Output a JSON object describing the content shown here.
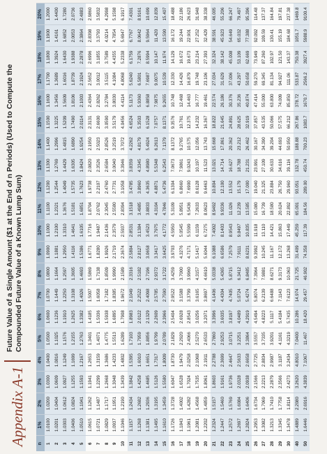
{
  "header": {
    "title": "Appendix A-1",
    "subtitle": "Future Value of a Single Amount ($1 at the End of n Periods) (Used to Compute the Compounded Future Value of a Known Lump Sum)"
  },
  "table": {
    "columns": [
      "n",
      "1%",
      "2%",
      "3%",
      "4%",
      "5%",
      "6%",
      "7%",
      "8%",
      "9%",
      "10%",
      "11%",
      "12%",
      "13%",
      "14%",
      "15%",
      "16%",
      "17%",
      "18%",
      "19%",
      "20%"
    ],
    "rows": [
      [
        "1",
        "1.0100",
        "1.0200",
        "1.0300",
        "1.0400",
        "1.0500",
        "1.0600",
        "1.0700",
        "1.0800",
        "1.0900",
        "1.1000",
        "1.1100",
        "1.1200",
        "1.1300",
        "1.1400",
        "1.1500",
        "1.1600",
        "1.1700",
        "1.1800",
        "1.1900",
        "1.2000"
      ],
      [
        "2",
        "1.0201",
        "1.0404",
        "1.0609",
        "1.0816",
        "1.1025",
        "1.1236",
        "1.1449",
        "1.1664",
        "1.1881",
        "1.2100",
        "1.2321",
        "1.2544",
        "1.2769",
        "1.2996",
        "1.3225",
        "1.3456",
        "1.3689",
        "1.3924",
        "1.4161",
        "1.4400"
      ],
      [
        "3",
        "1.0303",
        "1.0612",
        "1.0927",
        "1.1249",
        "1.1576",
        "1.1910",
        "1.2250",
        "1.2597",
        "1.2950",
        "1.3310",
        "1.3676",
        "1.4049",
        "1.4429",
        "1.4815",
        "1.5209",
        "1.5609",
        "1.6016",
        "1.6430",
        "1.6852",
        "1.7280"
      ],
      [
        "4",
        "1.0406",
        "1.0824",
        "1.1255",
        "1.1699",
        "1.2155",
        "1.2625",
        "1.3108",
        "1.3605",
        "1.4116",
        "1.4641",
        "1.5181",
        "1.5735",
        "1.6305",
        "1.6890",
        "1.7490",
        "1.8106",
        "1.8739",
        "1.9388",
        "2.0053",
        "2.0736"
      ],
      [
        "5",
        "1.0510",
        "1.1041",
        "1.1593",
        "1.2167",
        "1.2763",
        "1.3382",
        "1.4026",
        "1.4693",
        "1.5386",
        "1.6105",
        "1.6851",
        "1.7623",
        "1.8424",
        "1.9254",
        "2.0114",
        "2.1003",
        "2.1924",
        "2.2878",
        "2.3864",
        "2.4883"
      ],
      [
        "6",
        "1.0615",
        "1.1262",
        "1.1941",
        "1.2653",
        "1.3401",
        "1.4185",
        "1.5007",
        "1.5869",
        "1.6771",
        "1.7716",
        "1.8704",
        "1.9738",
        "2.0820",
        "2.1950",
        "2.3131",
        "2.4364",
        "2.5652",
        "2.6996",
        "2.8398",
        "2.9860"
      ],
      [
        "7",
        "1.0721",
        "1.1487",
        "1.2299",
        "1.3159",
        "1.4071",
        "1.5036",
        "1.6058",
        "1.7138",
        "1.8280",
        "1.9487",
        "2.0762",
        "2.2107",
        "2.3526",
        "2.5023",
        "2.6600",
        "2.8262",
        "3.0012",
        "3.1855",
        "3.3793",
        "3.5832"
      ],
      [
        "8",
        "1.0829",
        "1.1717",
        "1.2668",
        "1.3686",
        "1.4775",
        "1.5938",
        "1.7182",
        "1.8509",
        "1.9926",
        "2.1436",
        "2.3045",
        "2.4760",
        "2.6584",
        "2.8526",
        "3.0590",
        "3.2784",
        "3.5115",
        "3.7589",
        "4.0214",
        "4.2998"
      ],
      [
        "9",
        "1.0937",
        "1.1951",
        "1.3048",
        "1.4233",
        "1.5513",
        "1.6895",
        "1.8385",
        "1.9990",
        "2.1719",
        "2.3579",
        "2.5580",
        "2.7731",
        "3.0040",
        "3.2519",
        "3.5179",
        "3.8030",
        "4.1084",
        "4.4355",
        "4.7854",
        "5.1598"
      ],
      [
        "10",
        "1.1046",
        "1.2190",
        "1.3439",
        "1.4802",
        "1.6289",
        "1.7908",
        "1.9672",
        "2.1589",
        "2.3674",
        "2.5937",
        "2.8394",
        "3.1058",
        "3.3946",
        "3.7072",
        "4.0456",
        "4.4114",
        "4.8068",
        "5.2338",
        "5.6947",
        "6.1917"
      ],
      [
        "11",
        "1.1157",
        "1.2434",
        "1.3842",
        "1.5395",
        "1.7103",
        "1.8983",
        "2.1049",
        "2.3316",
        "2.5804",
        "2.8531",
        "3.1518",
        "3.4785",
        "3.8359",
        "4.2262",
        "4.6524",
        "5.1173",
        "5.6240",
        "6.1759",
        "6.7767",
        "7.4301"
      ],
      [
        "12",
        "1.1268",
        "1.2682",
        "1.4258",
        "1.6010",
        "1.7959",
        "2.0122",
        "2.2522",
        "2.5182",
        "2.8127",
        "3.1384",
        "3.4985",
        "3.8960",
        "4.3345",
        "4.8179",
        "5.3503",
        "5.9360",
        "6.5801",
        "7.2876",
        "8.0642",
        "8.9161"
      ],
      [
        "13",
        "1.1381",
        "1.2936",
        "1.4685",
        "1.6651",
        "1.8856",
        "2.1329",
        "2.4098",
        "2.7196",
        "3.0658",
        "3.4523",
        "3.8833",
        "4.3635",
        "4.8980",
        "5.4924",
        "6.1528",
        "6.8858",
        "7.6987",
        "8.5994",
        "9.5964",
        "10.699"
      ],
      [
        "14",
        "1.1495",
        "1.3195",
        "1.5126",
        "1.7317",
        "1.9799",
        "2.2609",
        "2.5785",
        "2.9372",
        "3.3417",
        "3.7975",
        "4.3104",
        "4.8871",
        "5.5348",
        "6.2613",
        "7.0757",
        "7.9875",
        "9.0075",
        "10.147",
        "11.420",
        "12.839"
      ],
      [
        "15",
        "1.1610",
        "1.3459",
        "1.5580",
        "1.8009",
        "2.0789",
        "2.3966",
        "2.7590",
        "3.1722",
        "3.6425",
        "4.1772",
        "4.7846",
        "5.4736",
        "6.2543",
        "7.1379",
        "8.1371",
        "9.2655",
        "10.539",
        "11.974",
        "13.590",
        "15.407"
      ],
      [
        "16",
        "1.1726",
        "1.3728",
        "1.6047",
        "1.8730",
        "2.1829",
        "2.5404",
        "2.9522",
        "3.4259",
        "3.9703",
        "4.5950",
        "5.3109",
        "6.1304",
        "7.0673",
        "8.1372",
        "9.3576",
        "10.748",
        "12.330",
        "14.129",
        "16.172",
        "18.488"
      ],
      [
        "17",
        "1.1843",
        "1.4002",
        "1.6528",
        "1.9479",
        "2.2920",
        "2.6928",
        "3.1588",
        "3.7000",
        "4.3276",
        "5.0545",
        "5.8951",
        "6.8660",
        "7.9861",
        "9.2765",
        "10.761",
        "12.468",
        "14.426",
        "16.672",
        "19.244",
        "22.186"
      ],
      [
        "18",
        "1.1961",
        "1.4282",
        "1.7024",
        "2.0258",
        "2.4066",
        "2.8543",
        "3.3799",
        "3.9960",
        "4.7171",
        "5.5599",
        "6.5436",
        "7.6900",
        "9.0243",
        "10.575",
        "12.375",
        "14.463",
        "16.879",
        "19.673",
        "22.901",
        "26.623"
      ],
      [
        "19",
        "1.2081",
        "1.4568",
        "1.7535",
        "2.1068",
        "2.5270",
        "3.0256",
        "3.6165",
        "4.3157",
        "5.1417",
        "6.1159",
        "7.2633",
        "8.6128",
        "10.197",
        "12.056",
        "14.232",
        "16.777",
        "19.748",
        "23.214",
        "27.252",
        "31.948"
      ],
      [
        "20",
        "1.2202",
        "1.4859",
        "1.8061",
        "2.1911",
        "2.6533",
        "3.2071",
        "3.8697",
        "4.6610",
        "5.6044",
        "6.7275",
        "8.0623",
        "9.6463",
        "11.523",
        "13.743",
        "16.367",
        "19.461",
        "23.106",
        "27.393",
        "32.429",
        "38.338"
      ],
      [
        "21",
        "1.2324",
        "1.5157",
        "1.8603",
        "2.2788",
        "2.7860",
        "3.3996",
        "4.1406",
        "5.0338",
        "6.1088",
        "7.4002",
        "8.9492",
        "10.804",
        "13.021",
        "15.668",
        "18.822",
        "22.574",
        "27.034",
        "32.324",
        "38.591",
        "46.005"
      ],
      [
        "22",
        "1.2447",
        "1.5460",
        "1.9161",
        "2.3699",
        "2.9253",
        "3.6035",
        "4.4304",
        "5.4365",
        "6.6586",
        "8.1403",
        "9.9336",
        "12.100",
        "14.714",
        "17.861",
        "21.645",
        "26.186",
        "31.629",
        "38.142",
        "45.923",
        "55.206"
      ],
      [
        "23",
        "1.2572",
        "1.5769",
        "1.9736",
        "2.4647",
        "3.0715",
        "3.8197",
        "4.7405",
        "5.8715",
        "7.2579",
        "8.9543",
        "11.026",
        "13.552",
        "16.627",
        "20.362",
        "24.891",
        "30.376",
        "37.006",
        "45.008",
        "54.649",
        "66.247"
      ],
      [
        "24",
        "1.2697",
        "1.6084",
        "2.0328",
        "2.5633",
        "3.2251",
        "4.0489",
        "5.0724",
        "6.3412",
        "7.9111",
        "9.8497",
        "12.239",
        "15.179",
        "18.788",
        "23.212",
        "28.625",
        "35.236",
        "43.297",
        "53.109",
        "65.032",
        "79.497"
      ],
      [
        "25",
        "1.2824",
        "1.6406",
        "2.0938",
        "2.6658",
        "3.3864",
        "4.2919",
        "5.4274",
        "6.8485",
        "8.6231",
        "10.835",
        "13.585",
        "17.000",
        "21.231",
        "26.462",
        "32.919",
        "40.874",
        "50.658",
        "62.669",
        "77.388",
        "95.396"
      ],
      [
        "26",
        "1.2953",
        "1.6734",
        "2.1566",
        "2.7725",
        "3.5557",
        "4.5494",
        "5.8074",
        "7.3964",
        "9.3992",
        "11.918",
        "15.080",
        "19.040",
        "23.991",
        "30.167",
        "37.857",
        "47.414",
        "59.270",
        "73.949",
        "92.092",
        "114.48"
      ],
      [
        "27",
        "1.3082",
        "1.7069",
        "2.2213",
        "2.8834",
        "3.7335",
        "4.8223",
        "6.2139",
        "7.9881",
        "10.245",
        "13.110",
        "16.739",
        "21.325",
        "27.109",
        "34.390",
        "43.535",
        "55.000",
        "69.345",
        "87.260",
        "109.59",
        "137.37"
      ],
      [
        "28",
        "1.3213",
        "1.7410",
        "2.2879",
        "2.9987",
        "3.9201",
        "5.1117",
        "6.6488",
        "8.6271",
        "11.167",
        "14.421",
        "18.580",
        "23.884",
        "30.633",
        "39.204",
        "50.066",
        "63.800",
        "81.134",
        "102.97",
        "130.41",
        "164.84"
      ],
      [
        "29",
        "1.3345",
        "1.7758",
        "2.3566",
        "3.1187",
        "4.1161",
        "5.4184",
        "7.1143",
        "9.3173",
        "12.172",
        "15.863",
        "20.624",
        "26.750",
        "34.616",
        "44.693",
        "57.575",
        "74.009",
        "94.927",
        "121.50",
        "155.19",
        "197.81"
      ],
      [
        "30",
        "1.3478",
        "1.8114",
        "2.4273",
        "3.2434",
        "4.3219",
        "5.7435",
        "7.6123",
        "10.063",
        "13.268",
        "17.449",
        "22.892",
        "29.960",
        "39.116",
        "50.950",
        "66.212",
        "85.850",
        "111.06",
        "143.37",
        "184.68",
        "237.38"
      ],
      [
        "40",
        "1.4889",
        "2.2080",
        "3.2620",
        "4.8010",
        "7.0400",
        "10.286",
        "14.974",
        "21.725",
        "31.409",
        "45.259",
        "65.001",
        "93.051",
        "132.78",
        "188.88",
        "267.86",
        "378.72",
        "533.87",
        "750.38",
        "1051.7",
        "1469.8"
      ],
      [
        "50",
        "1.6446",
        "2.6916",
        "4.3839",
        "7.1067",
        "11.467",
        "18.420",
        "29.457",
        "46.902",
        "74.358",
        "117.39",
        "184.56",
        "289.00",
        "450.74",
        "700.23",
        "1083.7",
        "1670.7",
        "2566.2",
        "3927.4",
        "5988.9",
        "9100.4"
      ]
    ]
  }
}
